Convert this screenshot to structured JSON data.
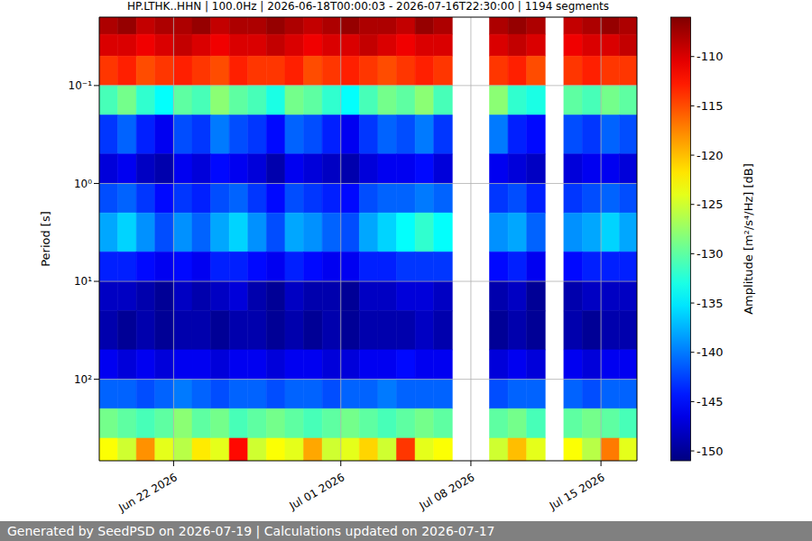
{
  "chart_data": {
    "type": "heatmap",
    "title": "HP.LTHK..HHN | 100.0Hz | 2026-06-18T00:00:03 - 2026-07-16T22:30:00 | 1194 segments",
    "footer": "Generated by SeedPSD on 2026-07-19 | Calculations updated on 2026-07-17",
    "y_label": "Period [s]",
    "log": "y",
    "grid": true,
    "xlim": [
      "2026-06-18T00:00:03",
      "2026-07-16T22:30:00"
    ],
    "xticks": [
      {
        "value": "2026-06-22",
        "label": "Jun 22 2026"
      },
      {
        "value": "2026-07-01",
        "label": "Jul 01 2026"
      },
      {
        "value": "2026-07-08",
        "label": "Jul 08 2026"
      },
      {
        "value": "2026-07-15",
        "label": "Jul 15 2026"
      }
    ],
    "ylim": [
      0.02,
      680
    ],
    "yticks": [
      {
        "value": 0.1,
        "label": "10⁻¹"
      },
      {
        "value": 1,
        "label": "10⁰"
      },
      {
        "value": 10,
        "label": "10¹"
      },
      {
        "value": 100,
        "label": "10²"
      }
    ],
    "x": [
      "2026-06-18",
      "2026-06-19",
      "2026-06-20",
      "2026-06-21",
      "2026-06-22",
      "2026-06-23",
      "2026-06-24",
      "2026-06-25",
      "2026-06-26",
      "2026-06-27",
      "2026-06-28",
      "2026-06-29",
      "2026-06-30",
      "2026-07-01",
      "2026-07-02",
      "2026-07-03",
      "2026-07-04",
      "2026-07-05",
      "2026-07-06",
      "2026-07-07",
      "2026-07-08",
      "2026-07-09",
      "2026-07-10",
      "2026-07-11",
      "2026-07-12",
      "2026-07-13",
      "2026-07-14",
      "2026-07-15",
      "2026-07-16"
    ],
    "y_edges": [
      0.02,
      0.03,
      0.05,
      0.1,
      0.2,
      0.5,
      1,
      2,
      5,
      10,
      20,
      50,
      100,
      200,
      400,
      680
    ],
    "values": [
      [
        -108,
        -107,
        -109,
        -108,
        -108,
        -107,
        -109,
        -108,
        -108,
        -107,
        -108,
        -109,
        -108,
        -107,
        -108,
        -108,
        -109,
        -107,
        -108,
        null,
        null,
        -108,
        -107,
        -108,
        null,
        -109,
        -108,
        -107,
        -108
      ],
      [
        -110,
        -110,
        -111,
        -110,
        -109,
        -110,
        -111,
        -110,
        -110,
        -109,
        -110,
        -111,
        -110,
        -110,
        -109,
        -110,
        -111,
        -110,
        -110,
        null,
        null,
        -110,
        -109,
        -110,
        null,
        -111,
        -110,
        -110,
        -109
      ],
      [
        -114,
        -113,
        -115,
        -114,
        -113,
        -114,
        -115,
        -113,
        -114,
        -114,
        -113,
        -115,
        -114,
        -113,
        -114,
        -115,
        -114,
        -113,
        -114,
        null,
        null,
        -114,
        -113,
        -115,
        null,
        -114,
        -113,
        -114,
        -114
      ],
      [
        -131,
        -129,
        -132,
        -134,
        -130,
        -131,
        -128,
        -130,
        -131,
        -133,
        -129,
        -130,
        -132,
        -134,
        -131,
        -129,
        -130,
        -128,
        -131,
        null,
        null,
        -128,
        -132,
        -133,
        null,
        -130,
        -131,
        -129,
        -130
      ],
      [
        -143,
        -141,
        -144,
        -146,
        -142,
        -143,
        -140,
        -142,
        -143,
        -145,
        -141,
        -142,
        -144,
        -146,
        -143,
        -141,
        -142,
        -140,
        -143,
        null,
        null,
        -140,
        -144,
        -145,
        null,
        -142,
        -143,
        -141,
        -142
      ],
      [
        -147,
        -146,
        -148,
        -149,
        -146,
        -147,
        -145,
        -146,
        -147,
        -149,
        -146,
        -147,
        -148,
        -149,
        -147,
        -146,
        -146,
        -145,
        -147,
        null,
        null,
        -146,
        -147,
        -148,
        null,
        -147,
        -146,
        -146,
        -147
      ],
      [
        -142,
        -141,
        -143,
        -145,
        -143,
        -144,
        -142,
        -141,
        -143,
        -145,
        -142,
        -143,
        -144,
        -145,
        -142,
        -141,
        -141,
        -140,
        -141,
        null,
        null,
        -143,
        -142,
        -144,
        null,
        -143,
        -142,
        -141,
        -142
      ],
      [
        -138,
        -136,
        -139,
        -142,
        -139,
        -141,
        -138,
        -136,
        -139,
        -142,
        -138,
        -139,
        -141,
        -142,
        -138,
        -136,
        -134,
        -132,
        -134,
        null,
        null,
        -139,
        -138,
        -141,
        null,
        -139,
        -138,
        -136,
        -138
      ],
      [
        -144,
        -144,
        -145,
        -146,
        -145,
        -146,
        -144,
        -144,
        -145,
        -146,
        -144,
        -145,
        -146,
        -146,
        -144,
        -144,
        -143,
        -143,
        -143,
        null,
        null,
        -145,
        -144,
        -146,
        null,
        -145,
        -144,
        -144,
        -144
      ],
      [
        -148,
        -148,
        -149,
        -150,
        -148,
        -149,
        -148,
        -147,
        -149,
        -150,
        -148,
        -149,
        -149,
        -150,
        -148,
        -148,
        -147,
        -147,
        -148,
        null,
        null,
        -149,
        -148,
        -150,
        null,
        -149,
        -148,
        -148,
        -148
      ],
      [
        -149,
        -150,
        -149,
        -150,
        -149,
        -149,
        -150,
        -149,
        -149,
        -150,
        -149,
        -150,
        -149,
        -150,
        -149,
        -149,
        -149,
        -148,
        -149,
        null,
        null,
        -150,
        -149,
        -150,
        null,
        -149,
        -150,
        -149,
        -149
      ],
      [
        -146,
        -147,
        -146,
        -147,
        -146,
        -146,
        -147,
        -146,
        -146,
        -147,
        -146,
        -146,
        -147,
        -147,
        -146,
        -146,
        -145,
        -146,
        -146,
        null,
        null,
        -147,
        -146,
        -147,
        null,
        -146,
        -147,
        -146,
        -146
      ],
      [
        -141,
        -141,
        -142,
        -141,
        -140,
        -141,
        -142,
        -141,
        -141,
        -142,
        -141,
        -141,
        -142,
        -141,
        -141,
        -140,
        -141,
        -141,
        -141,
        null,
        null,
        -142,
        -141,
        -141,
        null,
        -141,
        -142,
        -141,
        -141
      ],
      [
        -129,
        -130,
        -131,
        -130,
        -128,
        -130,
        -129,
        -131,
        -130,
        -129,
        -130,
        -131,
        -130,
        -129,
        -130,
        -131,
        -130,
        -129,
        -130,
        null,
        null,
        -130,
        -129,
        -131,
        null,
        -130,
        -129,
        -130,
        -131
      ],
      [
        -123,
        -125,
        -118,
        -124,
        -126,
        -122,
        -124,
        -112,
        -125,
        -123,
        -124,
        -119,
        -125,
        -124,
        -121,
        -125,
        -114,
        -124,
        -123,
        null,
        null,
        -125,
        -120,
        -124,
        null,
        -123,
        -126,
        -117,
        -124
      ]
    ],
    "colorbar": {
      "label": "Amplitude [m²/s⁴/Hz] [dB]",
      "zlim": [
        -151,
        -106
      ],
      "zticks": [
        -150,
        -145,
        -140,
        -135,
        -130,
        -125,
        -120,
        -115,
        -110
      ]
    }
  }
}
